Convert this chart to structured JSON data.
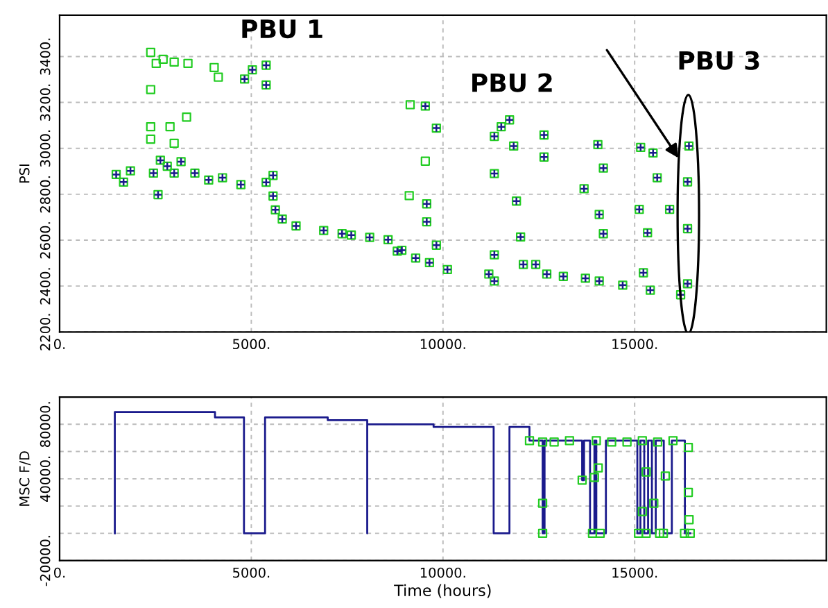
{
  "chart_data": [
    {
      "type": "scatter",
      "ylabel": "PSI",
      "xlim": [
        0,
        20000
      ],
      "ylim": [
        2200,
        3580
      ],
      "xticks": [
        {
          "value": 0,
          "label": "0."
        },
        {
          "value": 5000,
          "label": "5000."
        },
        {
          "value": 10000,
          "label": "10000."
        },
        {
          "value": 15000,
          "label": "15000."
        }
      ],
      "yticks": [
        {
          "value": 2200,
          "label": "2200."
        },
        {
          "value": 2400,
          "label": "2400."
        },
        {
          "value": 2600,
          "label": "2600."
        },
        {
          "value": 2800,
          "label": "2800."
        },
        {
          "value": 3000,
          "label": "3000."
        },
        {
          "value": 3200,
          "label": "3200."
        },
        {
          "value": 3400,
          "label": "3400."
        }
      ],
      "grid": true,
      "annotations": [
        "PBU 1",
        "PBU 2",
        "PBU 3"
      ],
      "series": [
        {
          "color": "#22cc22",
          "marker": "square",
          "x": [
            1476,
            1668,
            1848,
            2448,
            2568,
            2628,
            2808,
            2988,
            3168,
            3528,
            3888,
            4248,
            4728,
            4824,
            5028,
            5388,
            5388,
            5388,
            5568,
            5568,
            5628,
            5808,
            6168,
            6888,
            7368,
            7608,
            8088,
            8568,
            8808,
            9288,
            8928,
            9648,
            10116,
            11196,
            11340,
            11340,
            11520,
            11736,
            11844,
            11916,
            12024,
            12096,
            12420,
            12708,
            13140,
            13716,
            14076,
            14688,
            15408,
            16200,
            16380,
            16380,
            16380,
            16416,
            2376,
            2520,
            2700,
            2988,
            3348,
            2376,
            2376,
            2880,
            3312,
            2376,
            2988,
            4032,
            4140,
            9144,
            9120,
            9540,
            9540,
            9576,
            9576,
            9828,
            9828,
            11340,
            11340,
            12636,
            12636,
            13680,
            14040,
            14184,
            14076,
            14184,
            15156,
            15480,
            15588,
            15120,
            15336,
            15228,
            15912
          ],
          "values": [
            2886,
            2853,
            2902,
            2892,
            2798,
            2948,
            2922,
            2892,
            2942,
            2892,
            2862,
            2872,
            2842,
            3302,
            3342,
            3362,
            3276,
            2852,
            2882,
            2792,
            2732,
            2692,
            2662,
            2642,
            2628,
            2622,
            2612,
            2602,
            2552,
            2522,
            2556,
            2502,
            2472,
            2452,
            2422,
            3052,
            3094,
            3124,
            3010,
            2770,
            2614,
            2494,
            2494,
            2452,
            2442,
            2434,
            2422,
            2404,
            2382,
            2362,
            2410,
            2650,
            2854,
            3010,
            3418,
            3370,
            3388,
            3376,
            3370,
            3256,
            3094,
            3094,
            3136,
            3040,
            3022,
            3352,
            3310,
            3190,
            2794,
            3184,
            2944,
            2758,
            2680,
            3088,
            2578,
            2890,
            2536,
            3058,
            2962,
            2824,
            3016,
            2914,
            2712,
            2628,
            3004,
            2980,
            2872,
            2734,
            2632,
            2458,
            2734
          ]
        },
        {
          "color": "#1a1a8c",
          "marker": "cross",
          "x": [
            1476,
            1668,
            1848,
            2448,
            2568,
            2628,
            2808,
            2988,
            3168,
            3528,
            3888,
            4248,
            4728,
            4824,
            5028,
            5388,
            5388,
            5388,
            5568,
            5568,
            5628,
            5808,
            6168,
            6888,
            7368,
            7608,
            8088,
            8568,
            8808,
            9288,
            8928,
            9648,
            10116,
            11196,
            11340,
            11340,
            11520,
            11736,
            11844,
            11916,
            12024,
            12096,
            12420,
            12708,
            13140,
            13716,
            14076,
            14688,
            15408,
            16200,
            16380,
            16380,
            16380,
            16416,
            9540,
            9576,
            9576,
            9828,
            9828,
            11340,
            11340,
            12636,
            12636,
            13680,
            14040,
            14184,
            14076,
            14184,
            15156,
            15480,
            15588,
            15120,
            15336,
            15228,
            15912
          ],
          "values": [
            2886,
            2853,
            2902,
            2892,
            2798,
            2948,
            2922,
            2892,
            2942,
            2892,
            2862,
            2872,
            2842,
            3302,
            3342,
            3362,
            3276,
            2852,
            2882,
            2792,
            2732,
            2692,
            2662,
            2642,
            2628,
            2622,
            2612,
            2602,
            2552,
            2522,
            2556,
            2502,
            2472,
            2452,
            2422,
            3052,
            3094,
            3124,
            3010,
            2770,
            2614,
            2494,
            2494,
            2452,
            2442,
            2434,
            2422,
            2404,
            2382,
            2362,
            2410,
            2650,
            2854,
            3010,
            3184,
            2758,
            2680,
            3088,
            2578,
            2890,
            2536,
            3058,
            2962,
            2824,
            3016,
            2914,
            2712,
            2628,
            3004,
            2980,
            2872,
            2734,
            2632,
            2458,
            2734
          ]
        }
      ]
    },
    {
      "type": "step",
      "ylabel": "MSC F/D",
      "xlabel": "Time (hours)",
      "xlim": [
        0,
        20000
      ],
      "ylim": [
        -20000,
        100000
      ],
      "xticks": [
        {
          "value": 0,
          "label": "0."
        },
        {
          "value": 5000,
          "label": "5000."
        },
        {
          "value": 10000,
          "label": "10000."
        },
        {
          "value": 15000,
          "label": "15000."
        }
      ],
      "yticks": [
        {
          "value": -20000,
          "label": "-20000."
        },
        {
          "value": 0,
          "label": null
        },
        {
          "value": 20000,
          "label": null
        },
        {
          "value": 40000,
          "label": "40000."
        },
        {
          "value": 60000,
          "label": null
        },
        {
          "value": 80000,
          "label": "80000."
        }
      ],
      "grid": true,
      "series": [
        {
          "type": "step",
          "color": "#1a1a8c",
          "marker": "none",
          "x": [
            1440,
            1440,
            4053,
            4809,
            5359,
            6994,
            8024,
            8024,
            9755,
            11322,
            11734,
            12256,
            12600,
            12650,
            13630,
            13680,
            13836,
            13950,
            14000,
            14250,
            15070,
            15150,
            15250,
            15350,
            15450,
            15550,
            15760,
            15970,
            16310,
            16450
          ],
          "values": [
            0,
            89000,
            85000,
            0,
            85000,
            83000,
            0,
            80000,
            78000,
            0,
            78000,
            68000,
            0,
            68000,
            39000,
            68000,
            0,
            68000,
            0,
            68000,
            0,
            68000,
            0,
            68000,
            0,
            68000,
            0,
            68000,
            0,
            0
          ]
        },
        {
          "type": "scatter",
          "color": "#22cc22",
          "marker": "square",
          "x": [
            12256,
            12600,
            12900,
            13300,
            13630,
            14000,
            14400,
            14800,
            15200,
            15600,
            16000,
            16400,
            12600,
            12600,
            13900,
            14100,
            14050,
            13950,
            15100,
            15300,
            15200,
            15300,
            15500,
            15650,
            15750,
            15800,
            16300,
            16450,
            16400,
            16420
          ],
          "values": [
            68000,
            67000,
            67000,
            68000,
            39000,
            68000,
            67000,
            67000,
            68000,
            67000,
            68000,
            63000,
            0,
            22000,
            0,
            0,
            48000,
            41000,
            0,
            0,
            16000,
            45000,
            22000,
            0,
            0,
            42000,
            0,
            0,
            30000,
            10000
          ]
        }
      ]
    }
  ]
}
